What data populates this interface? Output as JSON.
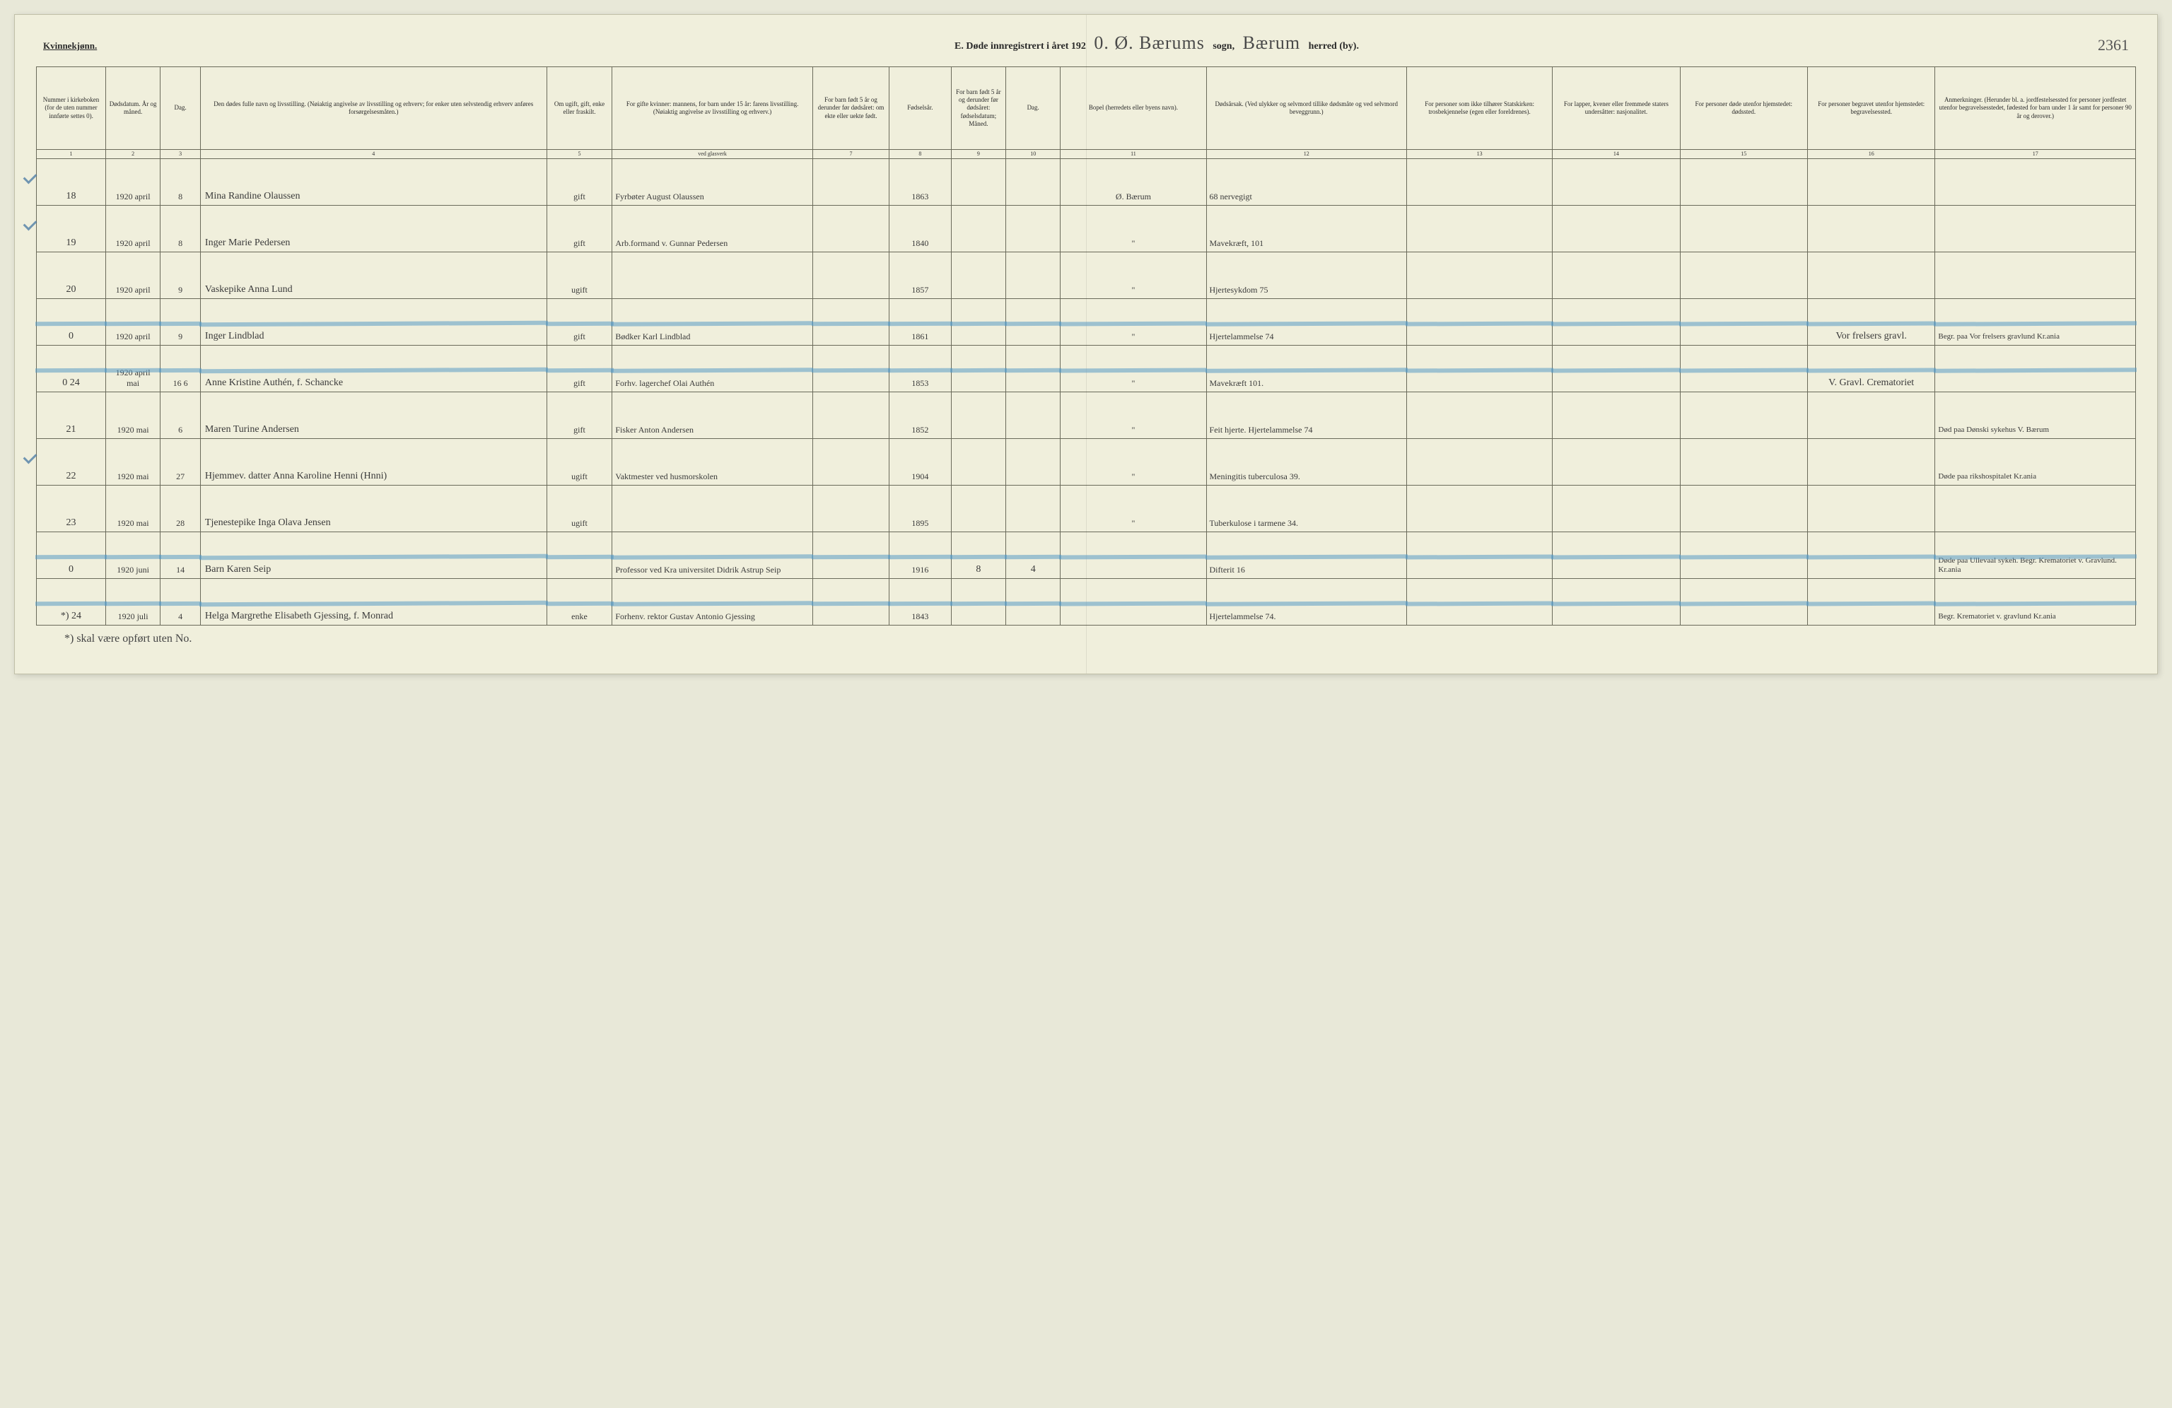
{
  "header": {
    "gender": "Kvinnekjønn.",
    "title_prefix": "E.  Døde innregistrert i året 192",
    "year_suffix_script": "0. Ø. Bærums",
    "sogn_label": "sogn,",
    "herred_script": "Bærum",
    "herred_label": "herred (by).",
    "page_number": "2361"
  },
  "columns": [
    {
      "w": 38,
      "label": "Nummer i kirke­boken (for de uten nummer innførte settes 0)."
    },
    {
      "w": 30,
      "label": "Dødsdatum. År og måned."
    },
    {
      "w": 22,
      "label": "Dag."
    },
    {
      "w": 190,
      "label": "Den dødes fulle navn og livsstilling. (Nøiaktig angivelse av livsstilling og erhverv; for enker uten selvstendig erhverv anføres forsørgelsesmåten.)"
    },
    {
      "w": 36,
      "label": "Om ugift, gift, enke eller fraskilt."
    },
    {
      "w": 110,
      "label": "For gifte kvinner: mannens, for barn under 15 år: farens livsstilling. (Nøiaktig angivelse av livsstilling og erhverv.)"
    },
    {
      "w": 42,
      "label": "For barn født 5 år og derunder før døds­året: om ekte eller uekte født."
    },
    {
      "w": 34,
      "label": "Fødsels­år."
    },
    {
      "w": 30,
      "label": "For barn født 5 år og der­under før dødsåret: fødselsdatum; Måned."
    },
    {
      "w": 30,
      "label": "Dag."
    },
    {
      "w": 80,
      "label": "Bopel (herredets eller byens navn)."
    },
    {
      "w": 110,
      "label": "Dødsårsak. (Ved ulykker og selv­mord tillike dødsmåte og ved selvmord beveggrunn.)"
    },
    {
      "w": 80,
      "label": "For personer som ikke tilhører Statskirken: trosbekjennelse (egen eller foreldrenes)."
    },
    {
      "w": 70,
      "label": "For lapper, kvener eller fremmede staters undersåtter: nasjonalitet."
    },
    {
      "w": 70,
      "label": "For personer døde utenfor hjemstedet: dødssted."
    },
    {
      "w": 70,
      "label": "For personer begravet utenfor hjemstedet: begravelsessted."
    },
    {
      "w": 110,
      "label": "Anmerkninger. (Herunder bl. a. jordfestelsessted for personer jordfestet utenfor begravelses­stedet, fødested for barn under 1 år samt for personer 90 år og derover.)"
    }
  ],
  "colnums": [
    "1",
    "2",
    "3",
    "4",
    "5",
    "ved glasverk",
    "7",
    "8",
    "9",
    "10",
    "11",
    "12",
    "13",
    "14",
    "15",
    "16",
    "17"
  ],
  "rows": [
    {
      "num": "18",
      "ym": "1920 april",
      "day": "8",
      "name": "Mina Randine Olaussen",
      "status": "gift",
      "spouse": "Fyrbøter August Olaussen",
      "ekte": "",
      "birth": "1863",
      "bm": "",
      "bd": "",
      "bopel": "Ø. Bærum",
      "cause": "68 nervegigt",
      "col13": "",
      "col14": "",
      "col15": "",
      "col16": "",
      "remarks": "",
      "tick": true,
      "blue": false
    },
    {
      "num": "19",
      "ym": "1920 april",
      "day": "8",
      "name": "Inger Marie Pedersen",
      "status": "gift",
      "spouse": "Arb.formand v. Gunnar Pedersen",
      "ekte": "",
      "birth": "1840",
      "bm": "",
      "bd": "",
      "bopel": "\"",
      "cause": "Mavekræft, 101",
      "col13": "",
      "col14": "",
      "col15": "",
      "col16": "",
      "remarks": "",
      "tick": true,
      "blue": false
    },
    {
      "num": "20",
      "ym": "1920 april",
      "day": "9",
      "name": "Vaskepike Anna Lund",
      "status": "ugift",
      "spouse": "",
      "ekte": "",
      "birth": "1857",
      "bm": "",
      "bd": "",
      "bopel": "\"",
      "cause": "Hjertesykdom 75",
      "col13": "",
      "col14": "",
      "col15": "",
      "col16": "",
      "remarks": "",
      "tick": false,
      "blue": false
    },
    {
      "num": "0",
      "ym": "1920 april",
      "day": "9",
      "name": "Inger Lindblad",
      "status": "gift",
      "spouse": "Bødker Karl Lindblad",
      "ekte": "",
      "birth": "1861",
      "bm": "",
      "bd": "",
      "bopel": "\"",
      "cause": "Hjertelammelse 74",
      "col13": "",
      "col14": "",
      "col15": "",
      "col16": "Vor frelsers gravl.",
      "remarks": "Begr. paa Vor frelsers gravlund Kr.ania",
      "tick": false,
      "blue": true
    },
    {
      "num": "0 24",
      "ym": "1920 april mai",
      "day": "16 6",
      "name": "Anne Kristine Authén, f. Schancke",
      "status": "gift",
      "spouse": "Forhv. lagerchef Olai Authén",
      "ekte": "",
      "birth": "1853",
      "bm": "",
      "bd": "",
      "bopel": "\"",
      "cause": "Mavekræft 101.",
      "col13": "",
      "col14": "",
      "col15": "",
      "col16": "V. Gravl. Crematoriet",
      "remarks": "",
      "tick": false,
      "blue": true
    },
    {
      "num": "21",
      "ym": "1920 mai",
      "day": "6",
      "name": "Maren Turine Andersen",
      "status": "gift",
      "spouse": "Fisker Anton Andersen",
      "ekte": "",
      "birth": "1852",
      "bm": "",
      "bd": "",
      "bopel": "\"",
      "cause": "Feit hjerte. Hjertelammelse 74",
      "col13": "",
      "col14": "",
      "col15": "",
      "col16": "",
      "remarks": "Død paa Dønski sykehus V. Bærum",
      "tick": false,
      "blue": false
    },
    {
      "num": "22",
      "ym": "1920 mai",
      "day": "27",
      "name": "Hjemmev. datter Anna Karoline Henni (Hnni)",
      "status": "ugift",
      "spouse": "Vaktmester ved husmor­skolen",
      "ekte": "",
      "birth": "1904",
      "bm": "",
      "bd": "",
      "bopel": "\"",
      "cause": "Meningitis tuberculosa 39.",
      "col13": "",
      "col14": "",
      "col15": "",
      "col16": "",
      "remarks": "Døde paa rikshospitalet Kr.ania",
      "tick": true,
      "blue": false
    },
    {
      "num": "23",
      "ym": "1920 mai",
      "day": "28",
      "name": "Tjenestepike Inga Olava Jensen",
      "status": "ugift",
      "spouse": "",
      "ekte": "",
      "birth": "1895",
      "bm": "",
      "bd": "",
      "bopel": "\"",
      "cause": "Tuberkulose i tarmene 34.",
      "col13": "",
      "col14": "",
      "col15": "",
      "col16": "",
      "remarks": "",
      "tick": false,
      "blue": false
    },
    {
      "num": "0",
      "ym": "1920 juni",
      "day": "14",
      "name": "Barn Karen Seip",
      "status": "",
      "spouse": "Professor ved Kra universitet Didrik Astrup Seip",
      "ekte": "",
      "birth": "1916",
      "bm": "8",
      "bd": "4",
      "bopel": "",
      "cause": "Difterit 16",
      "col13": "",
      "col14": "",
      "col15": "",
      "col16": "",
      "remarks": "Døde paa Ullevaal sykeh. Begr. Krematoriet v. Gravlund. Kr.ania",
      "tick": false,
      "blue": true
    },
    {
      "num": "*) 24",
      "ym": "1920 juli",
      "day": "4",
      "name": "Helga Margrethe Elisabeth Gjessing, f. Monrad",
      "status": "enke",
      "spouse": "Forhenv. rektor Gustav Antonio Gjessing",
      "ekte": "",
      "birth": "1843",
      "bm": "",
      "bd": "",
      "bopel": "",
      "cause": "Hjertelammelse 74.",
      "col13": "",
      "col14": "",
      "col15": "",
      "col16": "",
      "remarks": "Begr. Krematoriet v. gravlund Kr.ania",
      "tick": false,
      "blue": true
    }
  ],
  "footnote": "*) skal være opført uten No."
}
